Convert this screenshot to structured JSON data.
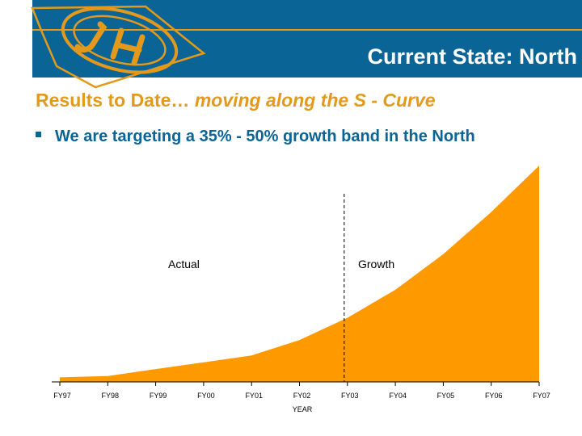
{
  "header": {
    "title": "Current State: North"
  },
  "subtitle": {
    "lead": "Results to Date…",
    "emphasis": "moving along the S - Curve"
  },
  "bullets": [
    {
      "text": "We are targeting a 35% - 50% growth band in the North"
    }
  ],
  "colors": {
    "brand_blue": "#0a6496",
    "accent_orange": "#e39a1c",
    "area_fill": "#ff9900"
  },
  "logo": {
    "icon": "company-logo-icon"
  },
  "chart_data": {
    "type": "area",
    "title": "",
    "xlabel": "YEAR",
    "ylabel": "",
    "categories": [
      "FY97",
      "FY98",
      "FY99",
      "FY00",
      "FY01",
      "FY02",
      "FY03",
      "FY04",
      "FY05",
      "FY06",
      "FY07"
    ],
    "series": [
      {
        "values": [
          2.1,
          2.7,
          5.9,
          9.0,
          12.2,
          19.3,
          29.5,
          42.4,
          58.8,
          78.2,
          99.6
        ]
      }
    ],
    "ylim": [
      0,
      100
    ],
    "y_axis_visible": false,
    "grid": false,
    "divider": {
      "at": "FY03",
      "style": "dashed"
    },
    "annotations": [
      {
        "text": "Actual"
      },
      {
        "text": "Growth"
      }
    ]
  }
}
